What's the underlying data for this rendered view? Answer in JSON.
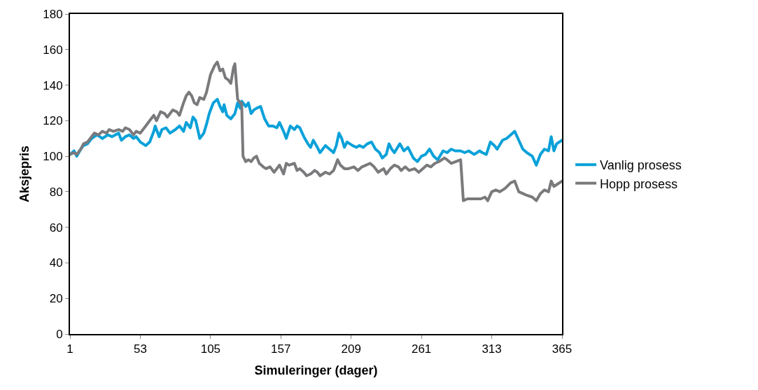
{
  "chart_data": {
    "type": "line",
    "xlabel": "Simuleringer (dager)",
    "ylabel": "Aksjepris",
    "xlim": [
      1,
      365
    ],
    "xticks": [
      1,
      53,
      105,
      157,
      209,
      261,
      313,
      365
    ],
    "ylim": [
      0,
      180
    ],
    "yticks": [
      0,
      20,
      40,
      60,
      80,
      100,
      120,
      140,
      160,
      180
    ],
    "legend": "right",
    "marker": "none",
    "line_style": "solid",
    "series": [
      {
        "name": "Vanlig prosess",
        "color": "#0aa1d9",
        "x": [
          1,
          4,
          6,
          9,
          11,
          14,
          17,
          21,
          25,
          29,
          32,
          37,
          39,
          42,
          45,
          48,
          50,
          53,
          57,
          60,
          63,
          64,
          67,
          69,
          72,
          75,
          79,
          82,
          85,
          87,
          90,
          92,
          94,
          97,
          100,
          102,
          104,
          107,
          110,
          112,
          114,
          115,
          117,
          120,
          123,
          125,
          127,
          128,
          131,
          133,
          135,
          137,
          139,
          142,
          145,
          148,
          151,
          154,
          156,
          159,
          161,
          164,
          167,
          169,
          171,
          174,
          177,
          179,
          181,
          184,
          186,
          190,
          193,
          196,
          198,
          200,
          202,
          204,
          206,
          210,
          213,
          215,
          218,
          221,
          224,
          227,
          230,
          232,
          235,
          237,
          239,
          241,
          245,
          248,
          251,
          255,
          258,
          261,
          264,
          267,
          270,
          273,
          277,
          280,
          283,
          286,
          290,
          293,
          296,
          300,
          304,
          306,
          309,
          312,
          315,
          317,
          321,
          324,
          327,
          330,
          333,
          336,
          339,
          343,
          346,
          349,
          352,
          355,
          357,
          359,
          361,
          365
        ],
        "values": [
          101,
          103,
          100,
          104,
          106,
          107,
          110,
          112,
          110,
          112,
          111,
          113,
          109,
          111,
          112,
          110,
          111,
          108,
          106,
          108,
          114,
          117,
          111,
          115,
          116,
          113,
          115,
          117,
          114,
          119,
          116,
          122,
          120,
          110,
          113,
          118,
          124,
          130,
          132,
          128,
          125,
          129,
          123,
          121,
          124,
          130,
          127,
          131,
          128,
          130,
          124,
          126,
          127,
          128,
          121,
          117,
          117,
          116,
          119,
          114,
          110,
          117,
          115,
          117,
          116,
          111,
          107,
          105,
          109,
          105,
          102,
          106,
          104,
          102,
          106,
          113,
          110,
          105,
          108,
          106,
          105,
          106,
          105,
          107,
          108,
          104,
          102,
          99,
          101,
          107,
          104,
          102,
          107,
          103,
          105,
          99,
          97,
          100,
          101,
          104,
          100,
          98,
          103,
          102,
          104,
          103,
          103,
          102,
          103,
          101,
          103,
          102,
          101,
          108,
          106,
          104,
          109,
          110,
          112,
          114,
          109,
          104,
          102,
          100,
          95,
          101,
          104,
          103,
          111,
          103,
          107,
          109
        ]
      },
      {
        "name": "Hopp prosess",
        "color": "#7a7a7d",
        "x": [
          1,
          4,
          6,
          9,
          11,
          14,
          17,
          19,
          22,
          25,
          28,
          30,
          33,
          37,
          40,
          42,
          45,
          48,
          50,
          53,
          57,
          60,
          63,
          65,
          68,
          71,
          73,
          75,
          77,
          80,
          82,
          85,
          87,
          89,
          91,
          93,
          95,
          97,
          100,
          102,
          105,
          108,
          110,
          112,
          114,
          116,
          118,
          120,
          122,
          123,
          125,
          127,
          128,
          129,
          131,
          133,
          135,
          137,
          139,
          141,
          144,
          146,
          149,
          152,
          154,
          156,
          159,
          161,
          163,
          167,
          169,
          171,
          174,
          176,
          179,
          182,
          184,
          186,
          190,
          193,
          196,
          199,
          201,
          204,
          207,
          211,
          214,
          217,
          220,
          223,
          226,
          229,
          233,
          235,
          238,
          241,
          244,
          246,
          249,
          252,
          256,
          259,
          262,
          265,
          268,
          271,
          274,
          278,
          280,
          283,
          290,
          292,
          295,
          299,
          302,
          305,
          308,
          310,
          313,
          316,
          319,
          323,
          327,
          330,
          333,
          336,
          339,
          343,
          346,
          349,
          352,
          355,
          357,
          359,
          361,
          365
        ],
        "values": [
          101,
          102,
          101,
          104,
          107,
          108,
          111,
          113,
          112,
          114,
          113,
          115,
          114,
          115,
          114,
          116,
          115,
          112,
          114,
          113,
          117,
          120,
          123,
          120,
          125,
          124,
          122,
          124,
          126,
          125,
          123,
          130,
          134,
          136,
          134,
          130,
          129,
          133,
          132,
          136,
          146,
          151,
          153,
          148,
          149,
          144,
          143,
          141,
          150,
          152,
          132,
          130,
          130,
          100,
          97,
          98,
          97,
          99,
          100,
          96,
          94,
          93,
          94,
          91,
          93,
          95,
          90,
          96,
          95,
          96,
          92,
          93,
          91,
          89,
          90,
          92,
          91,
          89,
          91,
          90,
          92,
          98,
          95,
          93,
          93,
          94,
          92,
          94,
          95,
          96,
          94,
          91,
          93,
          90,
          93,
          95,
          94,
          92,
          94,
          92,
          93,
          91,
          93,
          95,
          94,
          96,
          97,
          99,
          98,
          96,
          98,
          75,
          76,
          76,
          76,
          76,
          77,
          75,
          80,
          81,
          80,
          82,
          85,
          86,
          80,
          79,
          78,
          77,
          75,
          79,
          81,
          80,
          86,
          83,
          84,
          86
        ]
      }
    ]
  }
}
